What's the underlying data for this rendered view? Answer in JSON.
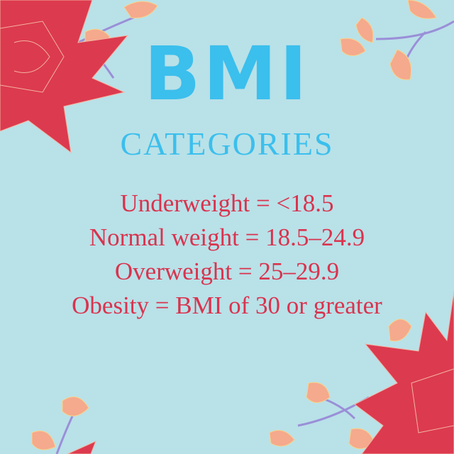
{
  "header": {
    "title": "BMI",
    "subtitle": "CATEGORIES"
  },
  "categories": [
    "Underweight = <18.5",
    "Normal weight = 18.5–24.9",
    "Overweight = 25–29.9",
    "Obesity = BMI of 30 or greater"
  ]
}
